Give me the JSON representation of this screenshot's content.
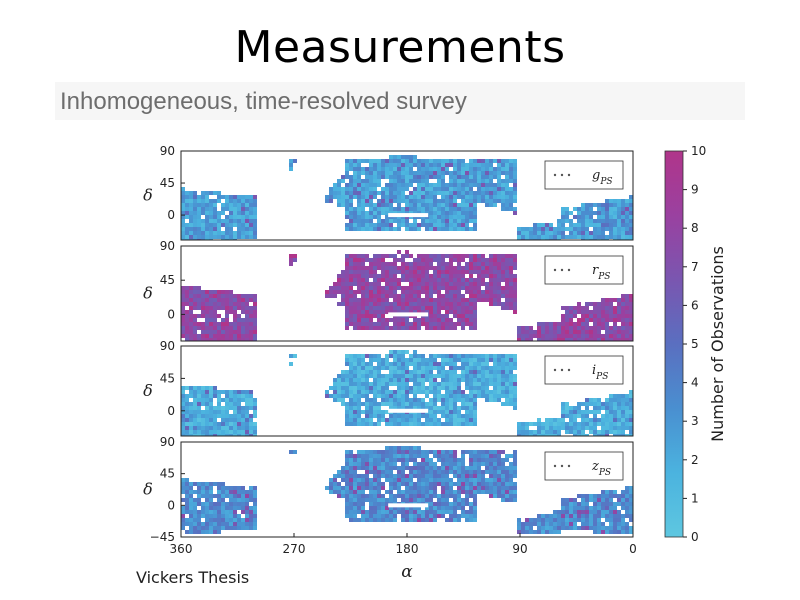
{
  "slide": {
    "title": "Measurements",
    "subtitle": "Inhomogeneous, time-resolved survey",
    "credit": "Vickers Thesis"
  },
  "colors": {
    "low": "#5ec7e0",
    "mid": "#5a6fc0",
    "high": "#b0358a",
    "colorbar_stops": [
      "#5ec7e0",
      "#4bb3df",
      "#4a8fd0",
      "#5a6fc0",
      "#7a56b0",
      "#9a41a0",
      "#b0358a"
    ]
  },
  "chart_data": {
    "type": "heatmap",
    "description_panels": "four stacked sky maps, one per Pan-STARRS filter",
    "xlabel": "α",
    "ylabel": "δ",
    "x_ticks": [
      360,
      270,
      180,
      90,
      0
    ],
    "xlim": [
      360,
      0
    ],
    "ylim": [
      -45,
      90
    ],
    "y_ticks_panel": [
      90,
      45,
      0
    ],
    "y_tick_bottom": -45,
    "colorbar": {
      "label": "Number of Observations",
      "range": [
        0,
        10
      ],
      "ticks": [
        0,
        1,
        2,
        3,
        4,
        5,
        6,
        7,
        8,
        9,
        10
      ]
    },
    "panels": [
      {
        "band": "g",
        "sub": "PS",
        "typical_observations": 2.5
      },
      {
        "band": "r",
        "sub": "PS",
        "typical_observations": 7.5
      },
      {
        "band": "i",
        "sub": "PS",
        "typical_observations": 1.8
      },
      {
        "band": "z",
        "sub": "PS",
        "typical_observations": 3.5
      }
    ]
  }
}
